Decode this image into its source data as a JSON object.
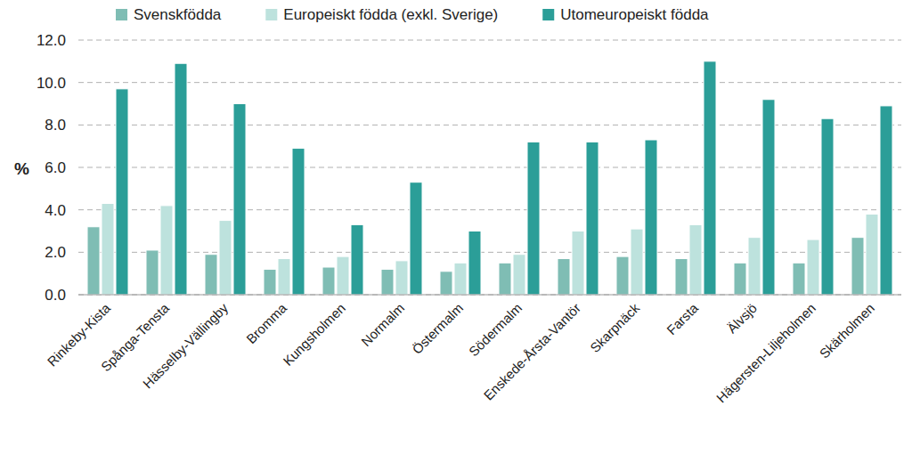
{
  "chart_data": {
    "type": "bar",
    "ylabel": "%",
    "categories": [
      "Rinkeby-Kista",
      "Spånga-Tensta",
      "Hässelby-Vällingby",
      "Bromma",
      "Kungsholmen",
      "Normalm",
      "Östermalm",
      "Södermalm",
      "Enskede-Årsta-Vantör",
      "Skarpnäck",
      "Farsta",
      "Älvsjö",
      "Hägersten-Liljeholmen",
      "Skärholmen"
    ],
    "series": [
      {
        "name": "Svenskfödda",
        "color": "#7fbdb4",
        "values": [
          3.2,
          2.1,
          1.9,
          1.2,
          1.3,
          1.2,
          1.1,
          1.5,
          1.7,
          1.8,
          1.7,
          1.5,
          1.5,
          2.7
        ]
      },
      {
        "name": "Europeiskt födda (exkl. Sverige)",
        "color": "#bde2dd",
        "values": [
          4.3,
          4.2,
          3.5,
          1.7,
          1.8,
          1.6,
          1.5,
          1.9,
          3.0,
          3.1,
          3.3,
          2.7,
          2.6,
          3.8
        ]
      },
      {
        "name": "Utomeuropeiskt födda",
        "color": "#2b9e98",
        "values": [
          9.7,
          10.9,
          9.0,
          6.9,
          3.3,
          5.3,
          3.0,
          7.2,
          7.2,
          7.3,
          11.0,
          9.2,
          8.3,
          8.9
        ]
      }
    ],
    "ylim": [
      0,
      12
    ],
    "yticks": [
      {
        "value": 0,
        "label": "0.0"
      },
      {
        "value": 2,
        "label": "2.0"
      },
      {
        "value": 4,
        "label": "4.0"
      },
      {
        "value": 6,
        "label": "6.0"
      },
      {
        "value": 8,
        "label": "8.0"
      },
      {
        "value": 10,
        "label": "10.0"
      },
      {
        "value": 12,
        "label": "12.0"
      }
    ],
    "grid": true,
    "legend": "top"
  }
}
